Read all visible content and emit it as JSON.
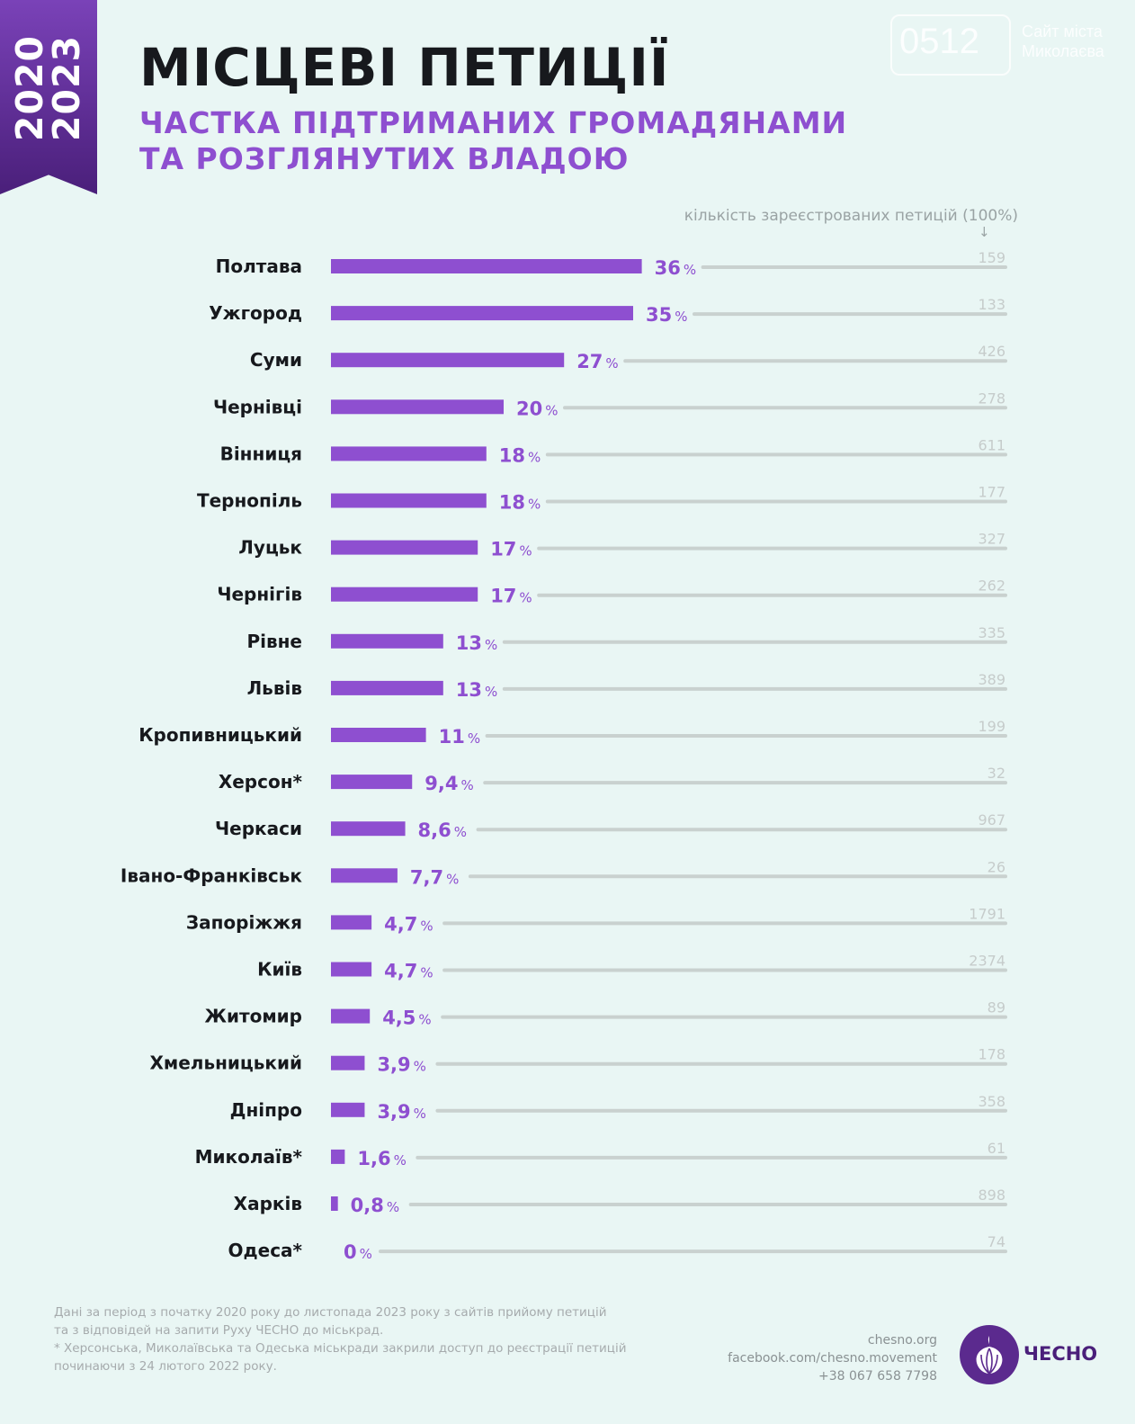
{
  "header": {
    "years": [
      "2020",
      "2023"
    ],
    "title": "МІСЦЕВІ ПЕТИЦІЇ",
    "subtitle_lines": [
      "ЧАСТКА ПІДТРИМАНИХ ГРОМАДЯНАМИ",
      "ТА РОЗГЛЯНУТИХ ВЛАДОЮ"
    ]
  },
  "watermark": {
    "number": "0512",
    "text_lines": [
      "Сайт міста",
      "Миколаєва"
    ]
  },
  "count_label": "кількість зареєстрованих петицій (100%)",
  "count_arrow": "↓",
  "chart_data": {
    "type": "bar",
    "orientation": "horizontal",
    "title": "Місцеві петиції — частка підтриманих громадянами та розглянутих владою",
    "value_unit": "%",
    "xlim": [
      0,
      100
    ],
    "bar_color": "#8e4fd0",
    "categories": [
      "Полтава",
      "Ужгород",
      "Суми",
      "Чернівці",
      "Вінниця",
      "Тернопіль",
      "Луцьк",
      "Чернігів",
      "Рівне",
      "Львів",
      "Кропивницький",
      "Херсон*",
      "Черкаси",
      "Івано-Франківськ",
      "Запоріжжя",
      "Київ",
      "Житомир",
      "Хмельницький",
      "Дніпро",
      "Миколаїв*",
      "Харків",
      "Одеса*"
    ],
    "values": [
      36,
      35,
      27,
      20,
      18,
      18,
      17,
      17,
      13,
      13,
      11,
      9.4,
      8.6,
      7.7,
      4.7,
      4.7,
      4.5,
      3.9,
      3.9,
      1.6,
      0.8,
      0
    ],
    "value_labels": [
      "36",
      "35",
      "27",
      "20",
      "18",
      "18",
      "17",
      "17",
      "13",
      "13",
      "11",
      "9,4",
      "8,6",
      "7,7",
      "4,7",
      "4,7",
      "4,5",
      "3,9",
      "3,9",
      "1,6",
      "0,8",
      "0"
    ],
    "registered_counts": [
      159,
      133,
      426,
      278,
      611,
      177,
      327,
      262,
      335,
      389,
      199,
      32,
      967,
      26,
      1791,
      2374,
      89,
      178,
      358,
      61,
      898,
      74
    ]
  },
  "footnote_lines": [
    "Дані за період з початку 2020 року до листопада 2023 року з сайтів прийому петицій",
    "та з відповідей на запити Руху ЧЕСНО до міськрад.",
    "* Херсонська, Миколаївська та Одеська міськради закрили доступ до реєстрації петицій",
    "починаючи з 24 лютого 2022 року."
  ],
  "contacts": [
    "chesno.org",
    "facebook.com/chesno.movement",
    "+38 067 658 7798"
  ],
  "logo_text": "ЧЕСНО"
}
